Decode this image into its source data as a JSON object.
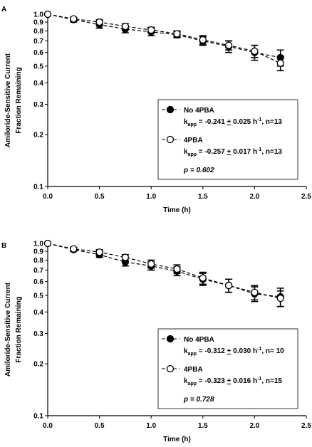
{
  "chart_data": [
    {
      "type": "line",
      "panel": "A",
      "xlabel": "Time (h)",
      "ylabel": [
        "Amiloride-Sensitive Current",
        "Fraction Remaining"
      ],
      "x": [
        0,
        0.25,
        0.5,
        0.75,
        1,
        1.25,
        1.5,
        1.75,
        2,
        2.25
      ],
      "xlim": [
        0,
        2.5
      ],
      "xticks": [
        {
          "value": 0,
          "label": "0.0"
        },
        0.5,
        {
          "value": 1,
          "label": "1.0"
        },
        1.5,
        {
          "value": 2,
          "label": "2.0"
        },
        2.5
      ],
      "ylim": [
        0.1,
        1
      ],
      "log_scale": true,
      "yticks": [
        0.1,
        0.2,
        0.3,
        0.4,
        0.5,
        0.6,
        0.7,
        0.8,
        0.9,
        {
          "value": 1,
          "label": "1.0"
        }
      ],
      "legend": "center right",
      "series": [
        {
          "name": "No 4PBA",
          "color": "#000000",
          "marker_fill": "#000000",
          "values": [
            1.0,
            0.93,
            0.87,
            0.82,
            0.79,
            0.76,
            0.7,
            0.65,
            0.6,
            0.56
          ],
          "errors": [
            0,
            0.03,
            0.04,
            0.04,
            0.04,
            0.03,
            0.04,
            0.05,
            0.06,
            0.06
          ],
          "stat": [
            "k",
            "app",
            " = -0.241 ",
            "+",
            " 0.025 h",
            "-1",
            ", n=13"
          ]
        },
        {
          "name": "4PBA",
          "color": "#000000",
          "marker_fill": "#ffffff",
          "values": [
            1.0,
            0.94,
            0.9,
            0.85,
            0.81,
            0.77,
            0.71,
            0.66,
            0.61,
            0.52
          ],
          "errors": [
            0,
            0.02,
            0.03,
            0.03,
            0.03,
            0.03,
            0.04,
            0.04,
            0.05,
            0.05
          ],
          "stat": [
            "k",
            "app",
            " = -0.257 ",
            "+",
            " 0.017 h",
            "-1",
            ", n=13"
          ]
        }
      ],
      "p_value": "p = 0.602"
    },
    {
      "type": "line",
      "panel": "B",
      "xlabel": "Time (h)",
      "ylabel": [
        "Amiloride-Sensitive Current",
        "Fraction Remaining"
      ],
      "x": [
        0,
        0.25,
        0.5,
        0.75,
        1,
        1.25,
        1.5,
        1.75,
        2,
        2.25
      ],
      "xlim": [
        0,
        2.5
      ],
      "xticks": [
        {
          "value": 0,
          "label": "0.0"
        },
        0.5,
        {
          "value": 1,
          "label": "1.0"
        },
        1.5,
        {
          "value": 2,
          "label": "2.0"
        },
        2.5
      ],
      "ylim": [
        0.1,
        1
      ],
      "log_scale": true,
      "yticks": [
        0.1,
        0.2,
        0.3,
        0.4,
        0.5,
        0.6,
        0.7,
        0.8,
        0.9,
        {
          "value": 1,
          "label": "1.0"
        }
      ],
      "legend": "center right",
      "series": [
        {
          "name": "No 4PBA",
          "color": "#000000",
          "marker_fill": "#000000",
          "values": [
            1.0,
            0.92,
            0.86,
            0.78,
            0.74,
            0.69,
            0.62,
            0.57,
            0.51,
            0.49
          ],
          "errors": [
            0,
            0.02,
            0.03,
            0.04,
            0.04,
            0.04,
            0.05,
            0.05,
            0.05,
            0.06
          ],
          "stat": [
            "k",
            "app",
            " = -0.312 ",
            "+",
            " 0.030 h",
            "-1",
            ", n= 10"
          ]
        },
        {
          "name": "4PBA",
          "color": "#000000",
          "marker_fill": "#ffffff",
          "values": [
            1.0,
            0.93,
            0.89,
            0.83,
            0.76,
            0.71,
            0.63,
            0.57,
            0.52,
            0.48
          ],
          "errors": [
            0,
            0.02,
            0.03,
            0.03,
            0.04,
            0.04,
            0.05,
            0.05,
            0.05,
            0.05
          ],
          "stat": [
            "k",
            "app",
            " = -0.323 ",
            "+",
            " 0.016 h",
            "-1",
            ", n=15"
          ]
        }
      ],
      "p_value": "p = 0.728"
    }
  ]
}
